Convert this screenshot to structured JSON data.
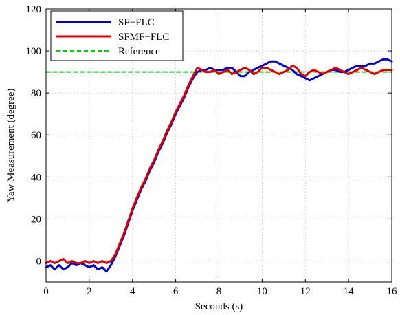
{
  "chart_data": {
    "type": "line",
    "title": "",
    "xlabel": "Seconds (s)",
    "ylabel": "Yaw Measurement (degree)",
    "xlim": [
      0,
      16
    ],
    "ylim": [
      -10,
      120
    ],
    "xticks": [
      0,
      2,
      4,
      6,
      8,
      10,
      12,
      14,
      16
    ],
    "yticks": [
      0,
      20,
      40,
      60,
      80,
      100,
      120
    ],
    "grid": true,
    "legend_position": "top-left",
    "series": [
      {
        "name": "SF−FLC",
        "color": "#0000cc",
        "style": "solid",
        "x": [
          0,
          0.2,
          0.4,
          0.6,
          0.8,
          1.0,
          1.2,
          1.4,
          1.6,
          1.8,
          2.0,
          2.2,
          2.4,
          2.6,
          2.8,
          3.0,
          3.2,
          3.4,
          3.6,
          3.8,
          4.0,
          4.2,
          4.4,
          4.6,
          4.8,
          5.0,
          5.2,
          5.4,
          5.6,
          5.8,
          6.0,
          6.2,
          6.4,
          6.6,
          6.8,
          7.0,
          7.2,
          7.4,
          7.6,
          7.8,
          8.0,
          8.2,
          8.4,
          8.6,
          8.8,
          9.0,
          9.2,
          9.4,
          9.6,
          9.8,
          10.0,
          10.2,
          10.4,
          10.6,
          10.8,
          11.0,
          11.2,
          11.4,
          11.6,
          11.8,
          12.0,
          12.2,
          12.4,
          12.6,
          12.8,
          13.0,
          13.2,
          13.4,
          13.6,
          13.8,
          14.0,
          14.2,
          14.4,
          14.6,
          14.8,
          15.0,
          15.2,
          15.4,
          15.6,
          15.8,
          16.0
        ],
        "values": [
          -3,
          -2,
          -4,
          -2,
          -4,
          -3,
          -1,
          -2,
          -1,
          -2,
          -3,
          -2,
          -4,
          -3,
          -5,
          -2,
          2,
          7,
          12,
          18,
          24,
          29,
          34,
          38,
          43,
          47,
          52,
          56,
          61,
          65,
          70,
          74,
          78,
          83,
          87,
          90,
          91,
          91,
          92,
          91,
          91,
          91,
          92,
          92,
          90,
          88,
          88,
          90,
          91,
          92,
          93,
          94,
          95,
          95,
          94,
          93,
          92,
          91,
          89,
          88,
          87,
          86,
          87,
          88,
          89,
          90,
          91,
          91,
          90,
          90,
          91,
          92,
          93,
          93,
          93,
          94,
          94,
          95,
          96,
          96,
          95
        ]
      },
      {
        "name": "SFMF−FLC",
        "color": "#e00000",
        "style": "solid",
        "x": [
          0,
          0.2,
          0.4,
          0.6,
          0.8,
          1.0,
          1.2,
          1.4,
          1.6,
          1.8,
          2.0,
          2.2,
          2.4,
          2.6,
          2.8,
          3.0,
          3.2,
          3.4,
          3.6,
          3.8,
          4.0,
          4.2,
          4.4,
          4.6,
          4.8,
          5.0,
          5.2,
          5.4,
          5.6,
          5.8,
          6.0,
          6.2,
          6.4,
          6.6,
          6.8,
          7.0,
          7.2,
          7.4,
          7.6,
          7.8,
          8.0,
          8.2,
          8.4,
          8.6,
          8.8,
          9.0,
          9.2,
          9.4,
          9.6,
          9.8,
          10.0,
          10.2,
          10.4,
          10.6,
          10.8,
          11.0,
          11.2,
          11.4,
          11.6,
          11.8,
          12.0,
          12.2,
          12.4,
          12.6,
          12.8,
          13.0,
          13.2,
          13.4,
          13.6,
          13.8,
          14.0,
          14.2,
          14.4,
          14.6,
          14.8,
          15.0,
          15.2,
          15.4,
          15.6,
          15.8,
          16.0
        ],
        "values": [
          -1,
          0,
          -1,
          0,
          1,
          -1,
          0,
          -1,
          -1,
          0,
          -1,
          0,
          -1,
          0,
          -1,
          0,
          3,
          8,
          13,
          19,
          25,
          30,
          35,
          39,
          44,
          48,
          53,
          57,
          62,
          66,
          71,
          75,
          79,
          84,
          88,
          92,
          91,
          90,
          90,
          91,
          89,
          90,
          91,
          89,
          90,
          91,
          92,
          91,
          89,
          90,
          92,
          92,
          91,
          90,
          89,
          90,
          91,
          93,
          92,
          89,
          88,
          90,
          91,
          90,
          89,
          90,
          91,
          92,
          91,
          90,
          89,
          90,
          91,
          92,
          91,
          90,
          89,
          90,
          91,
          91,
          91
        ]
      },
      {
        "name": "Reference",
        "color": "#00cc00",
        "style": "dashed",
        "x": [
          0,
          16
        ],
        "values": [
          90,
          90
        ]
      }
    ]
  }
}
